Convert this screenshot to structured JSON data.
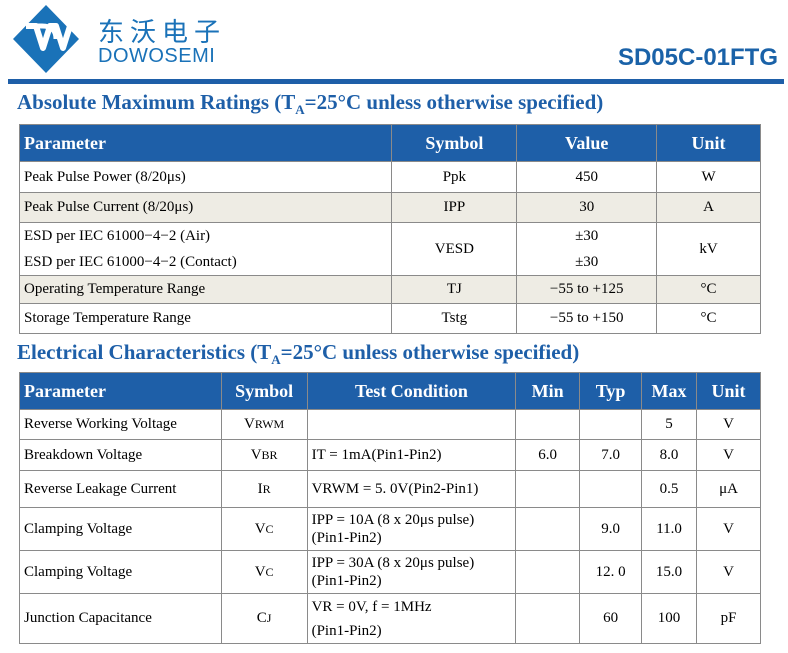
{
  "header": {
    "brand_cn": "东沃电子",
    "brand_en": "DOWOSEMI",
    "part_number": "SD05C-01FTG"
  },
  "abs_max": {
    "title_pre": "Absolute Maximum Ratings (T",
    "title_sub": "A",
    "title_post": "=25°C unless otherwise specified)",
    "headers": [
      "Parameter",
      "Symbol",
      "Value",
      "Unit"
    ],
    "rows": [
      {
        "param": "Peak Pulse Power (8/20μs)",
        "symbol": "Ppk",
        "value": "450",
        "unit": "W"
      },
      {
        "param": "Peak Pulse Current (8/20μs)",
        "symbol": "IPP",
        "value": "30",
        "unit": "A"
      },
      {
        "param_a": "ESD per IEC 61000−4−2 (Air)",
        "param_b": "ESD per IEC 61000−4−2 (Contact)",
        "symbol": "VESD",
        "value_a": "±30",
        "value_b": "±30",
        "unit": "kV"
      },
      {
        "param": "Operating Temperature Range",
        "symbol": "TJ",
        "value": "−55 to +125",
        "unit": "°C"
      },
      {
        "param": "Storage Temperature Range",
        "symbol": "Tstg",
        "value": "−55 to +150",
        "unit": "°C"
      }
    ]
  },
  "elec": {
    "title_pre": "Electrical Characteristics (T",
    "title_sub": "A",
    "title_post": "=25°C unless otherwise specified)",
    "headers": [
      "Parameter",
      "Symbol",
      "Test Condition",
      "Min",
      "Typ",
      "Max",
      "Unit"
    ],
    "rows": [
      {
        "param": "Reverse Working Voltage",
        "sym_main": "V",
        "sym_sub": "RWM",
        "cond_a": "",
        "cond_b": "",
        "min": "",
        "typ": "",
        "max": "5",
        "unit": "V"
      },
      {
        "param": "Breakdown Voltage",
        "sym_main": "V",
        "sym_sub": "BR",
        "cond_a": "IT = 1mA(Pin1-Pin2)",
        "cond_b": "",
        "min": "6.0",
        "typ": "7.0",
        "max": "8.0",
        "unit": "V"
      },
      {
        "param": "Reverse Leakage Current",
        "sym_main": "I",
        "sym_sub": "R",
        "cond_a": "VRWM = 5. 0V(Pin2-Pin1)",
        "cond_b": "",
        "min": "",
        "typ": "",
        "max": "0.5",
        "unit": "μA"
      },
      {
        "param": "Clamping Voltage",
        "sym_main": "V",
        "sym_sub": "C",
        "cond_a": "IPP = 10A (8 x 20μs pulse)",
        "cond_b": "(Pin1-Pin2)",
        "min": "",
        "typ": "9.0",
        "max": "11.0",
        "unit": "V"
      },
      {
        "param": "Clamping Voltage",
        "sym_main": "V",
        "sym_sub": "C",
        "cond_a": "IPP = 30A (8 x 20μs pulse)",
        "cond_b": "(Pin1-Pin2)",
        "min": "",
        "typ": "12. 0",
        "max": "15.0",
        "unit": "V"
      },
      {
        "param": "Junction Capacitance",
        "sym_main": "C",
        "sym_sub": "J",
        "cond_a": "VR = 0V, f = 1MHz",
        "cond_b": "(Pin1-Pin2)",
        "min": "",
        "typ": "60",
        "max": "100",
        "unit": "pF"
      }
    ]
  },
  "colors": {
    "brand_blue": "#1a72b8",
    "header_blue": "#1e5fa8",
    "row_shade": "#eeece4"
  }
}
